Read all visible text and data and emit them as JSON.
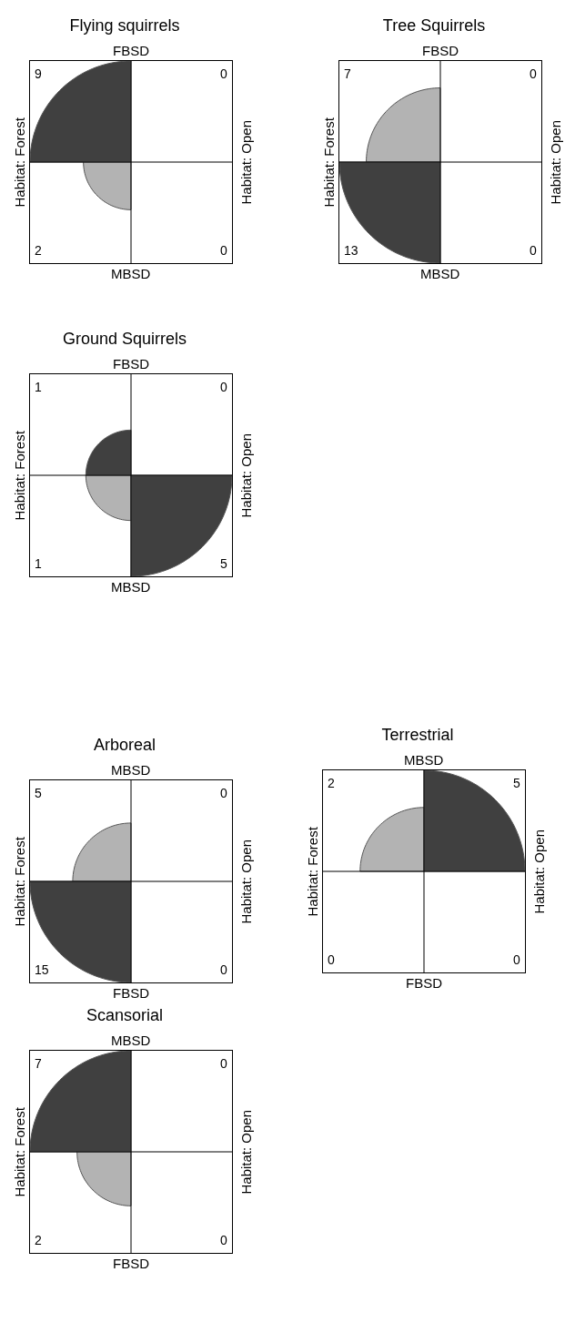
{
  "chart_data": [
    {
      "type": "other",
      "title": "Flying squirrels",
      "x2label": "FBSD",
      "xlabel": "MBSD",
      "ylabel": "Habitat: Forest",
      "y2label": "Habitat: Open",
      "categories": [
        null,
        null,
        null,
        null
      ],
      "values": [
        9,
        0,
        2,
        0
      ],
      "colors": [
        "#404040",
        "#b3b3b3",
        "#b3b3b3",
        "#404040"
      ],
      "data_labels": true
    },
    {
      "type": "other",
      "title": "Tree Squirrels",
      "x2label": "FBSD",
      "xlabel": "MBSD",
      "ylabel": "Habitat: Forest",
      "y2label": "Habitat: Open",
      "categories": [
        null,
        null,
        null,
        null
      ],
      "values": [
        7,
        0,
        13,
        0
      ],
      "colors": [
        "#b3b3b3",
        "#404040",
        "#404040",
        "#b3b3b3"
      ],
      "data_labels": true
    },
    {
      "type": "other",
      "title": "Ground Squirrels",
      "x2label": "FBSD",
      "xlabel": "MBSD",
      "ylabel": "Habitat: Forest",
      "y2label": "Habitat: Open",
      "categories": [
        null,
        null,
        null,
        null
      ],
      "values": [
        1,
        0,
        1,
        5
      ],
      "colors": [
        "#404040",
        "#b3b3b3",
        "#b3b3b3",
        "#404040"
      ],
      "data_labels": true
    },
    {
      "type": "other",
      "title": "Arboreal",
      "x2label": "MBSD",
      "xlabel": "FBSD",
      "ylabel": "Habitat: Forest",
      "y2label": "Habitat: Open",
      "categories": [
        null,
        null,
        null,
        null
      ],
      "values": [
        5,
        0,
        15,
        0
      ],
      "colors": [
        "#b3b3b3",
        "#404040",
        "#404040",
        "#b3b3b3"
      ],
      "data_labels": true
    },
    {
      "type": "other",
      "title": "Terrestrial",
      "x2label": "MBSD",
      "xlabel": "FBSD",
      "ylabel": "Habitat: Forest",
      "y2label": "Habitat: Open",
      "categories": [
        null,
        null,
        null,
        null
      ],
      "values": [
        2,
        5,
        0,
        0
      ],
      "colors": [
        "#b3b3b3",
        "#404040",
        "#404040",
        "#b3b3b3"
      ],
      "data_labels": true
    },
    {
      "type": "other",
      "title": "Scansorial",
      "x2label": "MBSD",
      "xlabel": "FBSD",
      "ylabel": "Habitat: Forest",
      "y2label": "Habitat: Open",
      "categories": [
        null,
        null,
        null,
        null
      ],
      "values": [
        7,
        0,
        2,
        0
      ],
      "colors": [
        "#404040",
        "#b3b3b3",
        "#b3b3b3",
        "#404040"
      ],
      "data_labels": true
    }
  ]
}
